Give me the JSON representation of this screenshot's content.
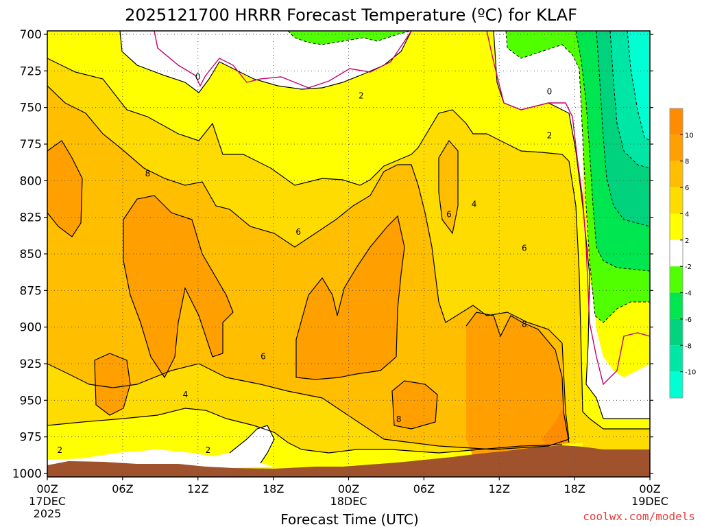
{
  "chart_data": {
    "type": "heatmap",
    "title": "2025121700 HRRR Forecast Temperature (ºC) for KLAF",
    "xlabel": "Forecast Time (UTC)",
    "ylabel": "",
    "x_ticks": [
      {
        "hour": 0,
        "label": "00Z",
        "date": "17DEC",
        "year": "2025"
      },
      {
        "hour": 6,
        "label": "06Z",
        "date": "",
        "year": ""
      },
      {
        "hour": 12,
        "label": "12Z",
        "date": "",
        "year": ""
      },
      {
        "hour": 18,
        "label": "18Z",
        "date": "",
        "year": ""
      },
      {
        "hour": 24,
        "label": "00Z",
        "date": "18DEC",
        "year": ""
      },
      {
        "hour": 30,
        "label": "06Z",
        "date": "",
        "year": ""
      },
      {
        "hour": 36,
        "label": "12Z",
        "date": "",
        "year": ""
      },
      {
        "hour": 42,
        "label": "18Z",
        "date": "",
        "year": ""
      },
      {
        "hour": 48,
        "label": "00Z",
        "date": "19DEC",
        "year": ""
      }
    ],
    "y_ticks": [
      "700",
      "725",
      "750",
      "775",
      "800",
      "825",
      "850",
      "875",
      "900",
      "925",
      "950",
      "975",
      "1000"
    ],
    "xlim": [
      0,
      48
    ],
    "ylim": [
      1000,
      700
    ],
    "grid": true,
    "colorbar": {
      "labels": [
        "10",
        "8",
        "6",
        "4",
        "2",
        "-2",
        "-4",
        "-6",
        "-8",
        "-10"
      ],
      "levels": [
        {
          "from": 10,
          "to": 12,
          "color": "#ff8c00"
        },
        {
          "from": 8,
          "to": 10,
          "color": "#ffa000"
        },
        {
          "from": 6,
          "to": 8,
          "color": "#ffbe00"
        },
        {
          "from": 4,
          "to": 6,
          "color": "#ffdc00"
        },
        {
          "from": 2,
          "to": 4,
          "color": "#ffff00"
        },
        {
          "from": -2,
          "to": 2,
          "color": "#ffffff"
        },
        {
          "from": -4,
          "to": -2,
          "color": "#50ff00"
        },
        {
          "from": -6,
          "to": -4,
          "color": "#00e650"
        },
        {
          "from": -8,
          "to": -6,
          "color": "#00d27d"
        },
        {
          "from": -10,
          "to": -8,
          "color": "#00e6a5"
        },
        {
          "from": -12,
          "to": -10,
          "color": "#00ffd2"
        }
      ]
    },
    "contour_labels": [
      {
        "text": "0",
        "hour": 12.0,
        "p": 730
      },
      {
        "text": "2",
        "hour": 1.0,
        "p": 985
      },
      {
        "text": "2",
        "hour": 12.8,
        "p": 985
      },
      {
        "text": "4",
        "hour": 11.0,
        "p": 947
      },
      {
        "text": "6",
        "hour": 17.2,
        "p": 921
      },
      {
        "text": "8",
        "hour": 8.0,
        "p": 796
      },
      {
        "text": "6",
        "hour": 20.0,
        "p": 836
      },
      {
        "text": "2",
        "hour": 25.0,
        "p": 743
      },
      {
        "text": "8",
        "hour": 28.0,
        "p": 964
      },
      {
        "text": "6",
        "hour": 32.0,
        "p": 824
      },
      {
        "text": "4",
        "hour": 34.0,
        "p": 817
      },
      {
        "text": "6",
        "hour": 38.0,
        "p": 847
      },
      {
        "text": "8",
        "hour": 38.0,
        "p": 899
      },
      {
        "text": "0",
        "hour": 40.0,
        "p": 740
      },
      {
        "text": "2",
        "hour": 40.0,
        "p": 770
      }
    ],
    "surface": {
      "color": "#a0522d"
    }
  },
  "credit": "coolwx.com/models"
}
